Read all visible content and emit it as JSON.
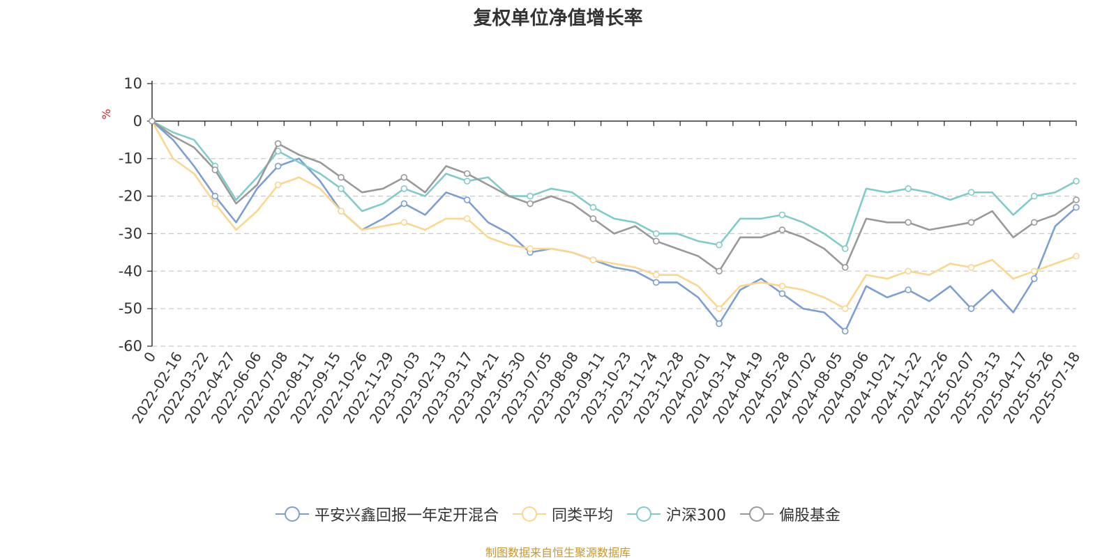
{
  "title": "复权单位净值增长率",
  "source_note": "制图数据来自恒生聚源数据库",
  "chart_data": {
    "type": "line",
    "title": "复权单位净值增长率",
    "ylabel": "%",
    "xlabel": "",
    "ylim": [
      -60,
      10
    ],
    "yticks": [
      10,
      0,
      -10,
      -20,
      -30,
      -40,
      -50,
      -60
    ],
    "xticks": [
      "0",
      "2022-02-16",
      "2022-03-22",
      "2022-04-27",
      "2022-06-06",
      "2022-07-08",
      "2022-08-11",
      "2022-09-15",
      "2022-10-26",
      "2022-11-29",
      "2023-01-03",
      "2023-02-13",
      "2023-03-17",
      "2023-04-21",
      "2023-05-30",
      "2023-07-05",
      "2023-08-08",
      "2023-09-11",
      "2023-10-23",
      "2023-11-24",
      "2023-12-28",
      "2024-02-01",
      "2024-03-14",
      "2024-04-19",
      "2024-05-28",
      "2024-07-02",
      "2024-08-05",
      "2024-09-06",
      "2024-10-21",
      "2024-11-22",
      "2024-12-26",
      "2025-02-07",
      "2025-03-13",
      "2025-04-17",
      "2025-05-26",
      "2025-07-18"
    ],
    "grid": true,
    "legend_position": "bottom",
    "series": [
      {
        "name": "平安兴鑫回报一年定开混合",
        "color": "#7b9fd4",
        "values": [
          0,
          -5,
          -12,
          -20,
          -27,
          -18,
          -12,
          -10,
          -16,
          -24,
          -29,
          -26,
          -22,
          -25,
          -19,
          -21,
          -27,
          -30,
          -35,
          -34,
          -35,
          -37,
          -39,
          -40,
          -43,
          -43,
          -47,
          -54,
          -45,
          -42,
          -46,
          -50,
          -51,
          -56,
          -44,
          -47,
          -45,
          -48,
          -44,
          -50,
          -45,
          -51,
          -42,
          -28,
          -23
        ]
      },
      {
        "name": "同类平均",
        "color": "#fcd68c",
        "values": [
          0,
          -10,
          -14,
          -22,
          -29,
          -24,
          -17,
          -15,
          -18,
          -24,
          -29,
          -28,
          -27,
          -29,
          -26,
          -26,
          -31,
          -33,
          -34,
          -34,
          -35,
          -37,
          -38,
          -39,
          -41,
          -41,
          -44,
          -50,
          -44,
          -43,
          -44,
          -45,
          -47,
          -50,
          -41,
          -42,
          -40,
          -41,
          -38,
          -39,
          -37,
          -42,
          -40,
          -38,
          -36
        ]
      },
      {
        "name": "沪深300",
        "color": "#7ecbcc",
        "values": [
          0,
          -3,
          -5,
          -12,
          -21,
          -15,
          -8,
          -11,
          -14,
          -18,
          -24,
          -22,
          -18,
          -20,
          -14,
          -16,
          -15,
          -20,
          -20,
          -18,
          -19,
          -23,
          -26,
          -27,
          -30,
          -30,
          -32,
          -33,
          -26,
          -26,
          -25,
          -27,
          -30,
          -34,
          -18,
          -19,
          -18,
          -19,
          -21,
          -19,
          -19,
          -25,
          -20,
          -19,
          -16
        ]
      },
      {
        "name": "偏股基金",
        "color": "#999999",
        "values": [
          0,
          -4,
          -7,
          -13,
          -22,
          -17,
          -6,
          -9,
          -11,
          -15,
          -19,
          -18,
          -15,
          -19,
          -12,
          -14,
          -17,
          -20,
          -22,
          -20,
          -22,
          -26,
          -30,
          -28,
          -32,
          -34,
          -36,
          -40,
          -31,
          -31,
          -29,
          -31,
          -34,
          -39,
          -26,
          -27,
          -27,
          -29,
          -28,
          -27,
          -24,
          -31,
          -27,
          -25,
          -21
        ]
      }
    ]
  }
}
